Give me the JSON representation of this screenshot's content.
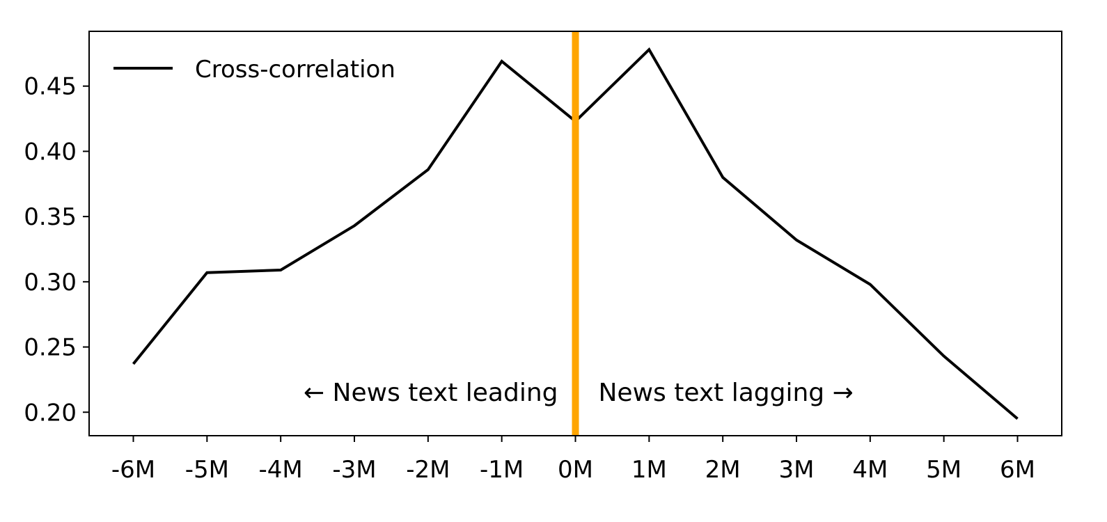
{
  "chart_data": {
    "type": "line",
    "title": "",
    "xlabel": "",
    "ylabel": "",
    "categories": [
      "-6M",
      "-5M",
      "-4M",
      "-3M",
      "-2M",
      "-1M",
      "0M",
      "1M",
      "2M",
      "3M",
      "4M",
      "5M",
      "6M"
    ],
    "x": [
      -6,
      -5,
      -4,
      -3,
      -2,
      -1,
      0,
      1,
      2,
      3,
      4,
      5,
      6
    ],
    "series": [
      {
        "name": "Cross-correlation",
        "color": "#000000",
        "values": [
          0.237,
          0.307,
          0.309,
          0.343,
          0.386,
          0.469,
          0.423,
          0.478,
          0.38,
          0.332,
          0.298,
          0.243,
          0.195
        ]
      }
    ],
    "xlim": [
      -6.6,
      6.6
    ],
    "ylim": [
      0.182,
      0.492
    ],
    "yticks": [
      0.2,
      0.25,
      0.3,
      0.35,
      0.4,
      0.45
    ],
    "ytick_labels": [
      "0.20",
      "0.25",
      "0.30",
      "0.35",
      "0.40",
      "0.45"
    ],
    "reference_line": {
      "x": 0,
      "color": "#FFA500"
    },
    "annotations": {
      "left": "← News text leading",
      "right": "News text lagging →"
    },
    "legend": {
      "position": "top-left",
      "label": "Cross-correlation"
    },
    "grid": false
  }
}
